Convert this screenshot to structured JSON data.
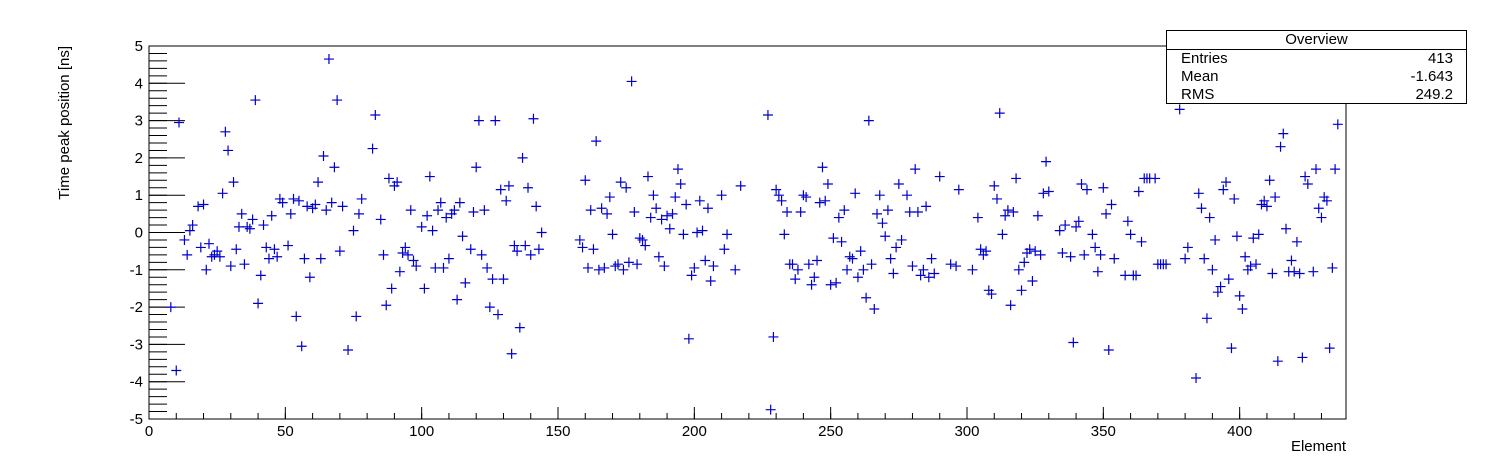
{
  "chart_data": {
    "type": "scatter",
    "marker": "+",
    "marker_color": "#0000cc",
    "xlabel": "Element",
    "ylabel": "Time peak position [ns]",
    "xlim": [
      0,
      439
    ],
    "ylim": [
      -5,
      5
    ],
    "x_major_ticks": [
      0,
      50,
      100,
      150,
      200,
      250,
      300,
      350,
      400
    ],
    "y_major_ticks": [
      -5,
      -4,
      -3,
      -2,
      -1,
      0,
      1,
      2,
      3,
      4,
      5
    ],
    "x_tick_labels": [
      "0",
      "50",
      "100",
      "150",
      "200",
      "250",
      "300",
      "350",
      "400"
    ],
    "y_tick_labels": [
      "-5",
      "-4",
      "-3",
      "-2",
      "-1",
      "0",
      "1",
      "2",
      "3",
      "4",
      "5"
    ],
    "points": [
      [
        8,
        -2.0
      ],
      [
        10,
        -3.7
      ],
      [
        11,
        2.95
      ],
      [
        13,
        -0.2
      ],
      [
        14,
        -0.6
      ],
      [
        15,
        0.05
      ],
      [
        16,
        0.2
      ],
      [
        18,
        0.7
      ],
      [
        19,
        -0.4
      ],
      [
        20,
        0.75
      ],
      [
        21,
        -1.0
      ],
      [
        22,
        -0.3
      ],
      [
        23,
        -0.65
      ],
      [
        24,
        -0.6
      ],
      [
        25,
        -0.5
      ],
      [
        26,
        -0.65
      ],
      [
        27,
        1.05
      ],
      [
        28,
        2.7
      ],
      [
        29,
        2.2
      ],
      [
        30,
        -0.9
      ],
      [
        31,
        1.35
      ],
      [
        32,
        -0.45
      ],
      [
        33,
        0.15
      ],
      [
        34,
        0.5
      ],
      [
        35,
        -0.85
      ],
      [
        36,
        0.15
      ],
      [
        37,
        0.1
      ],
      [
        38,
        0.35
      ],
      [
        39,
        3.55
      ],
      [
        40,
        -1.9
      ],
      [
        41,
        -1.15
      ],
      [
        42,
        0.2
      ],
      [
        43,
        -0.4
      ],
      [
        44,
        -0.7
      ],
      [
        45,
        0.45
      ],
      [
        46,
        -0.45
      ],
      [
        47,
        -0.65
      ],
      [
        48,
        0.9
      ],
      [
        49,
        0.8
      ],
      [
        51,
        -0.35
      ],
      [
        52,
        0.5
      ],
      [
        53,
        0.9
      ],
      [
        54,
        -2.25
      ],
      [
        55,
        0.85
      ],
      [
        56,
        -3.05
      ],
      [
        57,
        -0.7
      ],
      [
        58,
        0.7
      ],
      [
        59,
        -1.2
      ],
      [
        60,
        0.65
      ],
      [
        61,
        0.75
      ],
      [
        62,
        1.35
      ],
      [
        63,
        -0.7
      ],
      [
        64,
        2.05
      ],
      [
        65,
        0.6
      ],
      [
        66,
        4.65
      ],
      [
        67,
        0.8
      ],
      [
        68,
        1.75
      ],
      [
        69,
        3.55
      ],
      [
        70,
        -0.5
      ],
      [
        71,
        0.7
      ],
      [
        73,
        -3.15
      ],
      [
        75,
        0.05
      ],
      [
        76,
        -2.25
      ],
      [
        77,
        0.5
      ],
      [
        78,
        0.9
      ],
      [
        82,
        2.25
      ],
      [
        83,
        3.15
      ],
      [
        85,
        0.35
      ],
      [
        86,
        -0.6
      ],
      [
        87,
        -1.95
      ],
      [
        88,
        1.45
      ],
      [
        89,
        -1.5
      ],
      [
        90,
        1.25
      ],
      [
        91,
        1.35
      ],
      [
        92,
        -1.05
      ],
      [
        93,
        -0.55
      ],
      [
        94,
        -0.4
      ],
      [
        95,
        -0.6
      ],
      [
        96,
        0.6
      ],
      [
        97,
        -0.75
      ],
      [
        98,
        -0.9
      ],
      [
        100,
        0.15
      ],
      [
        101,
        -1.5
      ],
      [
        102,
        0.45
      ],
      [
        103,
        1.5
      ],
      [
        104,
        0.05
      ],
      [
        105,
        -0.95
      ],
      [
        106,
        0.6
      ],
      [
        107,
        0.8
      ],
      [
        108,
        -0.95
      ],
      [
        109,
        0.4
      ],
      [
        110,
        -0.7
      ],
      [
        111,
        0.5
      ],
      [
        112,
        0.6
      ],
      [
        113,
        -1.8
      ],
      [
        114,
        0.8
      ],
      [
        115,
        -0.1
      ],
      [
        116,
        -1.35
      ],
      [
        118,
        -0.45
      ],
      [
        119,
        0.55
      ],
      [
        120,
        1.75
      ],
      [
        121,
        3.0
      ],
      [
        122,
        -0.6
      ],
      [
        123,
        0.6
      ],
      [
        124,
        -0.95
      ],
      [
        125,
        -2.0
      ],
      [
        126,
        -1.25
      ],
      [
        127,
        3.0
      ],
      [
        128,
        -2.2
      ],
      [
        129,
        1.15
      ],
      [
        130,
        -1.25
      ],
      [
        131,
        0.85
      ],
      [
        132,
        1.25
      ],
      [
        133,
        -3.25
      ],
      [
        134,
        -0.35
      ],
      [
        135,
        -0.5
      ],
      [
        136,
        -2.55
      ],
      [
        137,
        2.0
      ],
      [
        138,
        -0.35
      ],
      [
        139,
        1.2
      ],
      [
        140,
        -0.6
      ],
      [
        141,
        3.05
      ],
      [
        142,
        0.7
      ],
      [
        143,
        -0.45
      ],
      [
        144,
        0.0
      ],
      [
        158,
        -0.2
      ],
      [
        159,
        -0.4
      ],
      [
        160,
        1.4
      ],
      [
        161,
        -0.95
      ],
      [
        162,
        0.6
      ],
      [
        163,
        -0.45
      ],
      [
        164,
        2.45
      ],
      [
        165,
        -1.0
      ],
      [
        166,
        0.65
      ],
      [
        167,
        -0.95
      ],
      [
        168,
        0.5
      ],
      [
        169,
        0.95
      ],
      [
        170,
        -0.05
      ],
      [
        171,
        -0.9
      ],
      [
        172,
        -0.85
      ],
      [
        173,
        1.35
      ],
      [
        174,
        -1.0
      ],
      [
        175,
        1.2
      ],
      [
        176,
        -0.8
      ],
      [
        177,
        4.05
      ],
      [
        178,
        0.55
      ],
      [
        179,
        -0.85
      ],
      [
        180,
        -0.15
      ],
      [
        181,
        -0.2
      ],
      [
        182,
        -0.35
      ],
      [
        183,
        1.5
      ],
      [
        184,
        0.4
      ],
      [
        185,
        1.0
      ],
      [
        186,
        0.65
      ],
      [
        187,
        -0.65
      ],
      [
        188,
        0.35
      ],
      [
        189,
        -0.9
      ],
      [
        190,
        0.45
      ],
      [
        191,
        0.1
      ],
      [
        192,
        0.5
      ],
      [
        193,
        0.95
      ],
      [
        194,
        1.7
      ],
      [
        195,
        1.3
      ],
      [
        196,
        -0.05
      ],
      [
        197,
        0.75
      ],
      [
        198,
        -2.85
      ],
      [
        199,
        -1.15
      ],
      [
        200,
        -0.95
      ],
      [
        201,
        0.0
      ],
      [
        202,
        0.85
      ],
      [
        203,
        0.05
      ],
      [
        204,
        -0.75
      ],
      [
        205,
        0.65
      ],
      [
        206,
        -1.3
      ],
      [
        207,
        -0.9
      ],
      [
        210,
        1.0
      ],
      [
        211,
        -0.45
      ],
      [
        212,
        -0.05
      ],
      [
        215,
        -1.0
      ],
      [
        217,
        1.25
      ],
      [
        227,
        3.15
      ],
      [
        228,
        -4.75
      ],
      [
        229,
        -2.8
      ],
      [
        230,
        1.15
      ],
      [
        231,
        1.0
      ],
      [
        232,
        0.85
      ],
      [
        233,
        -0.05
      ],
      [
        234,
        0.55
      ],
      [
        235,
        -0.85
      ],
      [
        236,
        -0.85
      ],
      [
        237,
        -1.25
      ],
      [
        238,
        -1.0
      ],
      [
        239,
        0.55
      ],
      [
        240,
        1.0
      ],
      [
        241,
        0.95
      ],
      [
        242,
        -0.85
      ],
      [
        243,
        -1.4
      ],
      [
        244,
        -1.2
      ],
      [
        245,
        -0.75
      ],
      [
        246,
        0.8
      ],
      [
        247,
        1.75
      ],
      [
        248,
        0.85
      ],
      [
        249,
        1.3
      ],
      [
        250,
        -1.4
      ],
      [
        251,
        -0.15
      ],
      [
        252,
        -1.35
      ],
      [
        253,
        0.4
      ],
      [
        254,
        -0.25
      ],
      [
        255,
        0.6
      ],
      [
        256,
        -1.0
      ],
      [
        257,
        -0.65
      ],
      [
        258,
        -0.7
      ],
      [
        259,
        1.05
      ],
      [
        260,
        -1.2
      ],
      [
        261,
        -0.5
      ],
      [
        262,
        -1.0
      ],
      [
        263,
        -1.75
      ],
      [
        264,
        3.0
      ],
      [
        265,
        -0.85
      ],
      [
        266,
        -2.05
      ],
      [
        267,
        0.5
      ],
      [
        268,
        1.0
      ],
      [
        269,
        0.25
      ],
      [
        270,
        -0.1
      ],
      [
        271,
        0.6
      ],
      [
        272,
        -0.7
      ],
      [
        273,
        -1.1
      ],
      [
        274,
        -0.4
      ],
      [
        275,
        1.3
      ],
      [
        276,
        -0.2
      ],
      [
        278,
        1.0
      ],
      [
        279,
        0.55
      ],
      [
        280,
        -0.9
      ],
      [
        281,
        1.7
      ],
      [
        282,
        0.55
      ],
      [
        283,
        -1.15
      ],
      [
        284,
        -1.0
      ],
      [
        285,
        0.7
      ],
      [
        286,
        -1.2
      ],
      [
        287,
        -0.7
      ],
      [
        288,
        -1.1
      ],
      [
        290,
        1.5
      ],
      [
        294,
        -0.85
      ],
      [
        296,
        -0.9
      ],
      [
        297,
        1.15
      ],
      [
        302,
        -1.0
      ],
      [
        304,
        0.4
      ],
      [
        305,
        -0.45
      ],
      [
        306,
        -0.6
      ],
      [
        307,
        -0.5
      ],
      [
        308,
        -1.55
      ],
      [
        309,
        -1.65
      ],
      [
        310,
        1.25
      ],
      [
        311,
        0.9
      ],
      [
        312,
        3.2
      ],
      [
        313,
        -0.05
      ],
      [
        314,
        0.45
      ],
      [
        315,
        0.6
      ],
      [
        316,
        -1.95
      ],
      [
        317,
        0.55
      ],
      [
        318,
        1.45
      ],
      [
        319,
        -1.0
      ],
      [
        320,
        -1.55
      ],
      [
        321,
        -0.8
      ],
      [
        322,
        -0.55
      ],
      [
        323,
        -0.45
      ],
      [
        324,
        -1.3
      ],
      [
        325,
        -0.5
      ],
      [
        326,
        0.45
      ],
      [
        327,
        -0.6
      ],
      [
        328,
        1.05
      ],
      [
        329,
        1.9
      ],
      [
        330,
        1.1
      ],
      [
        334,
        0.05
      ],
      [
        335,
        -0.55
      ],
      [
        336,
        0.2
      ],
      [
        338,
        -0.65
      ],
      [
        339,
        -2.95
      ],
      [
        340,
        0.15
      ],
      [
        341,
        0.3
      ],
      [
        342,
        1.3
      ],
      [
        343,
        -0.6
      ],
      [
        344,
        1.15
      ],
      [
        346,
        -0.05
      ],
      [
        347,
        -0.4
      ],
      [
        348,
        -1.05
      ],
      [
        349,
        -0.6
      ],
      [
        350,
        1.2
      ],
      [
        351,
        0.5
      ],
      [
        352,
        -3.15
      ],
      [
        353,
        0.75
      ],
      [
        354,
        -0.7
      ],
      [
        358,
        -1.15
      ],
      [
        359,
        0.3
      ],
      [
        360,
        -0.05
      ],
      [
        361,
        -1.15
      ],
      [
        362,
        -1.15
      ],
      [
        363,
        1.1
      ],
      [
        364,
        -0.25
      ],
      [
        365,
        1.45
      ],
      [
        366,
        1.45
      ],
      [
        367,
        1.45
      ],
      [
        369,
        1.45
      ],
      [
        370,
        -0.85
      ],
      [
        371,
        -0.85
      ],
      [
        372,
        -0.85
      ],
      [
        373,
        -0.85
      ],
      [
        378,
        3.3
      ],
      [
        380,
        -0.7
      ],
      [
        381,
        -0.4
      ],
      [
        384,
        -3.9
      ],
      [
        385,
        1.05
      ],
      [
        386,
        0.65
      ],
      [
        387,
        -0.7
      ],
      [
        388,
        -2.3
      ],
      [
        389,
        0.4
      ],
      [
        390,
        -1.0
      ],
      [
        391,
        -0.2
      ],
      [
        392,
        -1.6
      ],
      [
        393,
        -1.45
      ],
      [
        394,
        1.15
      ],
      [
        395,
        1.35
      ],
      [
        396,
        -1.25
      ],
      [
        397,
        -3.1
      ],
      [
        398,
        0.9
      ],
      [
        399,
        -0.1
      ],
      [
        400,
        -1.7
      ],
      [
        401,
        -2.05
      ],
      [
        402,
        -0.65
      ],
      [
        403,
        -1.0
      ],
      [
        404,
        -0.9
      ],
      [
        405,
        -0.15
      ],
      [
        406,
        -0.85
      ],
      [
        407,
        -0.05
      ],
      [
        408,
        0.75
      ],
      [
        409,
        0.85
      ],
      [
        410,
        0.7
      ],
      [
        411,
        1.4
      ],
      [
        412,
        -1.1
      ],
      [
        413,
        0.95
      ],
      [
        414,
        -3.45
      ],
      [
        415,
        2.3
      ],
      [
        416,
        2.65
      ],
      [
        417,
        0.1
      ],
      [
        418,
        -1.05
      ],
      [
        419,
        -0.75
      ],
      [
        420,
        -1.05
      ],
      [
        421,
        -0.25
      ],
      [
        422,
        -1.1
      ],
      [
        423,
        -3.35
      ],
      [
        424,
        1.5
      ],
      [
        425,
        1.3
      ],
      [
        427,
        -1.05
      ],
      [
        428,
        1.7
      ],
      [
        429,
        0.65
      ],
      [
        430,
        0.4
      ],
      [
        431,
        0.95
      ],
      [
        432,
        0.85
      ],
      [
        433,
        -3.1
      ],
      [
        434,
        -0.95
      ],
      [
        435,
        1.7
      ],
      [
        436,
        2.9
      ]
    ]
  },
  "stats_box": {
    "title": "Overview",
    "entries_label": "Entries",
    "entries_value": "413",
    "mean_label": "Mean",
    "mean_value": "-1.643",
    "rms_label": "RMS",
    "rms_value": "249.2"
  }
}
